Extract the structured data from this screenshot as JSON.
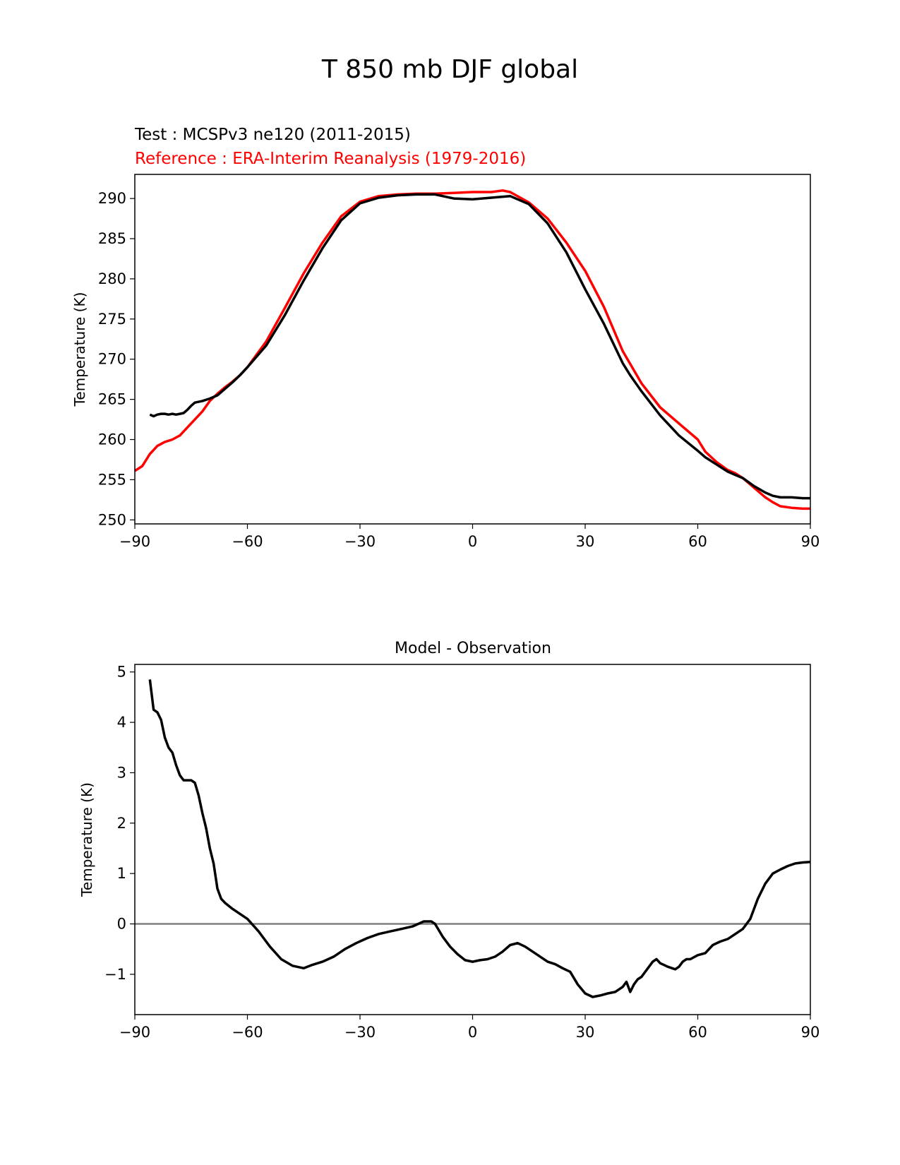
{
  "figure": {
    "title": "T 850 mb DJF global",
    "test_label": "Test : MCSPv3 ne120 (2011-2015)",
    "ref_label": "Reference : ERA-Interim Reanalysis (1979-2016)",
    "test_color": "#000000",
    "ref_color": "#ff0000",
    "zero_line_color": "#808080"
  },
  "chart_data": [
    {
      "type": "line",
      "title": "",
      "xlabel": "",
      "ylabel": "Temperature (K)",
      "xlim": [
        -90,
        90
      ],
      "ylim": [
        249.5,
        293
      ],
      "xticks": [
        -90,
        -60,
        -30,
        0,
        30,
        60,
        90
      ],
      "xtick_labels": [
        "−90",
        "−60",
        "−30",
        "0",
        "30",
        "60",
        "90"
      ],
      "yticks": [
        250,
        255,
        260,
        265,
        270,
        275,
        280,
        285,
        290
      ],
      "ytick_labels": [
        "250",
        "255",
        "260",
        "265",
        "270",
        "275",
        "280",
        "285",
        "290"
      ],
      "series": [
        {
          "name": "Reference : ERA-Interim Reanalysis (1979-2016)",
          "color": "#ff0000",
          "x": [
            -90,
            -88,
            -86,
            -84,
            -82,
            -80,
            -78,
            -76,
            -74,
            -72,
            -70,
            -68,
            -66,
            -64,
            -62,
            -60,
            -55,
            -50,
            -45,
            -40,
            -35,
            -30,
            -25,
            -20,
            -15,
            -10,
            -5,
            0,
            5,
            8,
            10,
            15,
            20,
            25,
            30,
            35,
            40,
            45,
            50,
            55,
            60,
            62,
            65,
            68,
            70,
            72,
            75,
            78,
            80,
            82,
            85,
            88,
            90
          ],
          "y": [
            256.1,
            256.7,
            258.2,
            259.2,
            259.7,
            260.0,
            260.5,
            261.5,
            262.5,
            263.5,
            264.8,
            265.7,
            266.5,
            267.2,
            268.0,
            269.0,
            272.2,
            276.4,
            280.7,
            284.5,
            287.8,
            289.6,
            290.3,
            290.5,
            290.6,
            290.6,
            290.7,
            290.8,
            290.8,
            291.0,
            290.8,
            289.5,
            287.5,
            284.5,
            281.0,
            276.5,
            271.0,
            267.0,
            264.0,
            262.0,
            260.0,
            258.5,
            257.2,
            256.2,
            255.8,
            255.2,
            254.0,
            252.8,
            252.2,
            251.7,
            251.5,
            251.4,
            251.4
          ]
        },
        {
          "name": "Test : MCSPv3 ne120 (2011-2015)",
          "color": "#000000",
          "x": [
            -86,
            -85,
            -84,
            -83,
            -82,
            -81,
            -80,
            -79,
            -78,
            -77,
            -76,
            -75,
            -74,
            -72,
            -70,
            -68,
            -66,
            -64,
            -62,
            -60,
            -55,
            -50,
            -45,
            -40,
            -35,
            -30,
            -25,
            -20,
            -15,
            -10,
            -5,
            0,
            5,
            10,
            15,
            20,
            25,
            30,
            35,
            40,
            42,
            45,
            50,
            55,
            60,
            62,
            65,
            68,
            70,
            72,
            75,
            78,
            80,
            82,
            85,
            88,
            90
          ],
          "y": [
            263.1,
            262.9,
            263.1,
            263.2,
            263.2,
            263.1,
            263.2,
            263.1,
            263.2,
            263.3,
            263.7,
            264.2,
            264.6,
            264.8,
            265.1,
            265.5,
            266.3,
            267.1,
            268.0,
            269.0,
            271.7,
            275.5,
            279.8,
            283.8,
            287.3,
            289.4,
            290.1,
            290.4,
            290.5,
            290.5,
            290.0,
            289.9,
            290.1,
            290.3,
            289.3,
            286.9,
            283.3,
            278.7,
            274.4,
            269.5,
            268.0,
            266.0,
            263.0,
            260.5,
            258.6,
            257.8,
            256.9,
            256.0,
            255.6,
            255.2,
            254.2,
            253.4,
            253.0,
            252.8,
            252.8,
            252.7,
            252.7
          ]
        }
      ]
    },
    {
      "type": "line",
      "title": "Model - Observation",
      "xlabel": "",
      "ylabel": "Temperature (K)",
      "xlim": [
        -90,
        90
      ],
      "ylim": [
        -1.8,
        5.15
      ],
      "xticks": [
        -90,
        -60,
        -30,
        0,
        30,
        60,
        90
      ],
      "xtick_labels": [
        "−90",
        "−60",
        "−30",
        "0",
        "30",
        "60",
        "90"
      ],
      "yticks": [
        -1,
        0,
        1,
        2,
        3,
        4,
        5
      ],
      "ytick_labels": [
        "−1",
        "0",
        "1",
        "2",
        "3",
        "4",
        "5"
      ],
      "zero_line": true,
      "series": [
        {
          "name": "",
          "color": "#000000",
          "x": [
            -86,
            -85,
            -84,
            -83,
            -82,
            -81,
            -80,
            -79,
            -78,
            -77,
            -76,
            -75,
            -74,
            -73,
            -72,
            -71,
            -70,
            -69,
            -68,
            -67,
            -66,
            -64,
            -62,
            -60,
            -57,
            -54,
            -51,
            -48,
            -45,
            -43,
            -40,
            -37,
            -34,
            -31,
            -28,
            -25,
            -22,
            -19,
            -16,
            -13,
            -11,
            -10,
            -8,
            -6,
            -4,
            -2,
            0,
            2,
            4,
            6,
            8,
            10,
            12,
            14,
            16,
            18,
            20,
            22,
            24,
            26,
            28,
            30,
            32,
            34,
            36,
            38,
            40,
            41,
            42,
            43,
            44,
            45,
            46,
            47,
            48,
            49,
            50,
            52,
            54,
            55,
            56,
            57,
            58,
            60,
            62,
            63,
            64,
            66,
            68,
            70,
            72,
            74,
            76,
            78,
            80,
            82,
            84,
            86,
            88,
            90
          ],
          "y": [
            4.85,
            4.25,
            4.2,
            4.05,
            3.7,
            3.5,
            3.4,
            3.15,
            2.95,
            2.85,
            2.85,
            2.85,
            2.8,
            2.55,
            2.2,
            1.9,
            1.5,
            1.2,
            0.7,
            0.5,
            0.42,
            0.3,
            0.2,
            0.1,
            -0.15,
            -0.45,
            -0.7,
            -0.83,
            -0.88,
            -0.82,
            -0.75,
            -0.65,
            -0.5,
            -0.38,
            -0.28,
            -0.2,
            -0.15,
            -0.1,
            -0.05,
            0.05,
            0.05,
            0.0,
            -0.25,
            -0.45,
            -0.6,
            -0.72,
            -0.75,
            -0.72,
            -0.7,
            -0.65,
            -0.55,
            -0.42,
            -0.38,
            -0.45,
            -0.55,
            -0.65,
            -0.75,
            -0.8,
            -0.88,
            -0.95,
            -1.2,
            -1.38,
            -1.45,
            -1.42,
            -1.38,
            -1.35,
            -1.25,
            -1.15,
            -1.35,
            -1.2,
            -1.1,
            -1.05,
            -0.95,
            -0.85,
            -0.75,
            -0.7,
            -0.78,
            -0.85,
            -0.9,
            -0.85,
            -0.75,
            -0.7,
            -0.7,
            -0.62,
            -0.58,
            -0.5,
            -0.42,
            -0.35,
            -0.3,
            -0.2,
            -0.1,
            0.1,
            0.5,
            0.8,
            1.0,
            1.08,
            1.15,
            1.2,
            1.22,
            1.23
          ]
        }
      ]
    }
  ]
}
